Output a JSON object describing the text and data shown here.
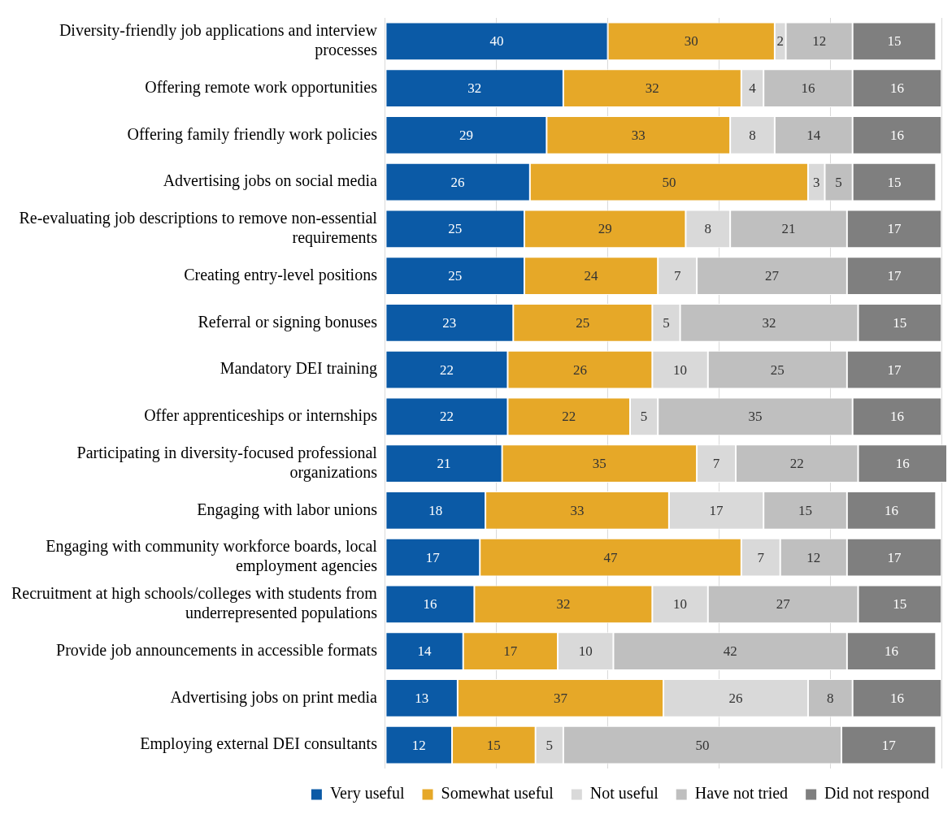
{
  "chart_data": {
    "type": "bar",
    "orientation": "horizontal",
    "stacked": true,
    "categories": [
      "Diversity-friendly job applications and interview processes",
      "Offering remote work opportunities",
      "Offering family friendly work policies",
      "Advertising jobs on social media",
      "Re-evaluating job descriptions to remove non-essential requirements",
      "Creating entry-level positions",
      "Referral or signing bonuses",
      "Mandatory DEI training",
      "Offer apprenticeships or internships",
      "Participating in diversity-focused professional organizations",
      "Engaging with labor unions",
      "Engaging with community workforce boards, local employment agencies",
      "Recruitment at high schools/colleges with students from underrepresented populations",
      "Provide job announcements in accessible formats",
      "Advertising jobs on print media",
      "Employing external DEI consultants"
    ],
    "series": [
      {
        "name": "Very useful",
        "color": "#0b5aa6",
        "values": [
          40,
          32,
          29,
          26,
          25,
          25,
          23,
          22,
          22,
          21,
          18,
          17,
          16,
          14,
          13,
          12
        ]
      },
      {
        "name": "Somewhat useful",
        "color": "#e6a828",
        "values": [
          30,
          32,
          33,
          50,
          29,
          24,
          25,
          26,
          22,
          35,
          33,
          47,
          32,
          17,
          37,
          15
        ]
      },
      {
        "name": "Not useful",
        "color": "#d9d9d9",
        "values": [
          2,
          4,
          8,
          3,
          8,
          7,
          5,
          10,
          5,
          7,
          17,
          7,
          10,
          10,
          26,
          5
        ]
      },
      {
        "name": "Have not tried",
        "color": "#bfbfbf",
        "values": [
          12,
          16,
          14,
          5,
          21,
          27,
          32,
          25,
          35,
          22,
          15,
          12,
          27,
          42,
          8,
          50
        ]
      },
      {
        "name": "Did not respond",
        "color": "#7f7f7f",
        "values": [
          15,
          16,
          16,
          15,
          17,
          17,
          15,
          17,
          16,
          16,
          16,
          17,
          15,
          16,
          16,
          17
        ]
      }
    ],
    "xlim": [
      0,
      101
    ],
    "xticks": [
      {
        "value": 0,
        "label": null
      },
      {
        "value": 20,
        "label": null
      },
      {
        "value": 40,
        "label": null
      },
      {
        "value": 60,
        "label": null
      },
      {
        "value": 80,
        "label": null
      },
      {
        "value": 100,
        "label": null
      }
    ],
    "tick_labels": "y",
    "grid": "x",
    "legend": "bottom",
    "data_labels": true
  }
}
